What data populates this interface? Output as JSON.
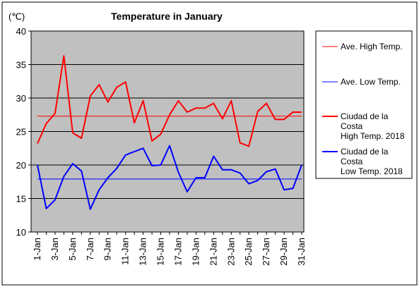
{
  "chart_data": {
    "type": "line",
    "title": "Temperature in January",
    "ylabel": "(℃)",
    "xlabel": "",
    "ylim": [
      10,
      40
    ],
    "yticks": [
      10,
      15,
      20,
      25,
      30,
      35,
      40
    ],
    "grid": "horizontal",
    "legend_position": "right",
    "categories": [
      "1-Jan",
      "2-Jan",
      "3-Jan",
      "4-Jan",
      "5-Jan",
      "6-Jan",
      "7-Jan",
      "8-Jan",
      "9-Jan",
      "10-Jan",
      "11-Jan",
      "12-Jan",
      "13-Jan",
      "14-Jan",
      "15-Jan",
      "16-Jan",
      "17-Jan",
      "18-Jan",
      "19-Jan",
      "20-Jan",
      "21-Jan",
      "22-Jan",
      "23-Jan",
      "24-Jan",
      "25-Jan",
      "26-Jan",
      "27-Jan",
      "28-Jan",
      "29-Jan",
      "30-Jan",
      "31-Jan"
    ],
    "tick_labels": [
      "1-Jan",
      "3-Jan",
      "5-Jan",
      "7-Jan",
      "9-Jan",
      "11-Jan",
      "13-Jan",
      "15-Jan",
      "17-Jan",
      "19-Jan",
      "21-Jan",
      "23-Jan",
      "25-Jan",
      "27-Jan",
      "29-Jan",
      "31-Jan"
    ],
    "series": [
      {
        "name": "Ave. High Temp.",
        "color": "#ff0000",
        "width": 1,
        "values": [
          27.3,
          27.3,
          27.3,
          27.3,
          27.3,
          27.3,
          27.3,
          27.3,
          27.3,
          27.3,
          27.3,
          27.3,
          27.3,
          27.3,
          27.3,
          27.3,
          27.3,
          27.3,
          27.3,
          27.3,
          27.3,
          27.3,
          27.3,
          27.3,
          27.3,
          27.3,
          27.3,
          27.3,
          27.3,
          27.3,
          27.3
        ]
      },
      {
        "name": "Ave. Low Temp.",
        "color": "#0000ff",
        "width": 1,
        "values": [
          17.9,
          17.9,
          17.9,
          17.9,
          17.9,
          17.9,
          17.9,
          17.9,
          17.9,
          17.9,
          17.9,
          17.9,
          17.9,
          17.9,
          17.9,
          17.9,
          17.9,
          17.9,
          17.9,
          17.9,
          17.9,
          17.9,
          17.9,
          17.9,
          17.9,
          17.9,
          17.9,
          17.9,
          17.9,
          17.9,
          17.9
        ]
      },
      {
        "name": "Ciudad de la Costa High Temp. 2018",
        "legend_lines": [
          "Ciudad de la",
          "Costa",
          "High Temp. 2018"
        ],
        "color": "#ff0000",
        "width": 2,
        "values": [
          23.2,
          26.2,
          27.7,
          36.3,
          24.8,
          24.0,
          30.3,
          32.0,
          29.4,
          31.6,
          32.4,
          26.3,
          29.6,
          23.6,
          24.6,
          27.5,
          29.6,
          27.9,
          28.5,
          28.5,
          29.2,
          26.9,
          29.6,
          23.3,
          22.8,
          28.0,
          29.2,
          26.8,
          26.8,
          27.9,
          27.9
        ]
      },
      {
        "name": "Ciudad de la Costa Low Temp. 2018",
        "legend_lines": [
          "Ciudad de la",
          "Costa",
          "Low Temp. 2018"
        ],
        "color": "#0000ff",
        "width": 2,
        "values": [
          20.0,
          13.5,
          14.8,
          18.3,
          20.2,
          19.1,
          13.4,
          16.3,
          18.1,
          19.5,
          21.5,
          22.0,
          22.5,
          19.9,
          20.0,
          22.9,
          18.9,
          16.0,
          18.1,
          18.1,
          21.3,
          19.3,
          19.3,
          18.8,
          17.2,
          17.7,
          19.0,
          19.4,
          16.3,
          16.5,
          20.0
        ]
      }
    ]
  }
}
